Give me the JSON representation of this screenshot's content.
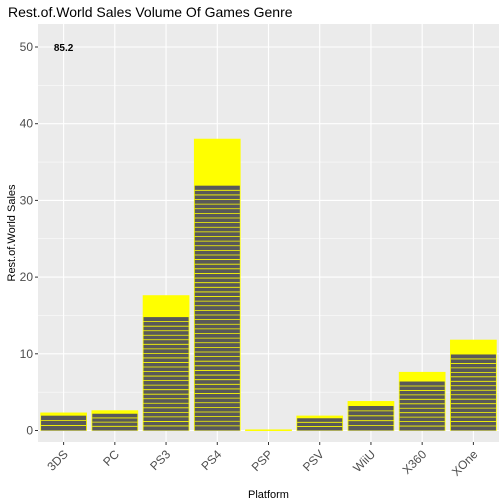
{
  "chart_data": {
    "type": "bar",
    "title": "Rest.of.World Sales Volume Of Games Genre",
    "xlabel": "Platform",
    "ylabel": "Rest.of.World Sales",
    "ylim": [
      -1.5,
      53
    ],
    "yticks": [
      0,
      10,
      20,
      30,
      40,
      50
    ],
    "grid": true,
    "categories": [
      "3DS",
      "PC",
      "PS3",
      "PS4",
      "PSP",
      "PSV",
      "WiiU",
      "X360",
      "XOne"
    ],
    "values": [
      2.3,
      2.6,
      17.6,
      38.0,
      0.1,
      1.9,
      3.8,
      7.6,
      11.8
    ],
    "annotations": [
      {
        "category": "3DS",
        "y": 50,
        "text": "85.2"
      }
    ],
    "colors": {
      "fill": "#ffff00",
      "segment_fill": "#595959",
      "outline": "#ffff00",
      "panel": "#ebebeb",
      "grid": "#ffffff"
    }
  }
}
